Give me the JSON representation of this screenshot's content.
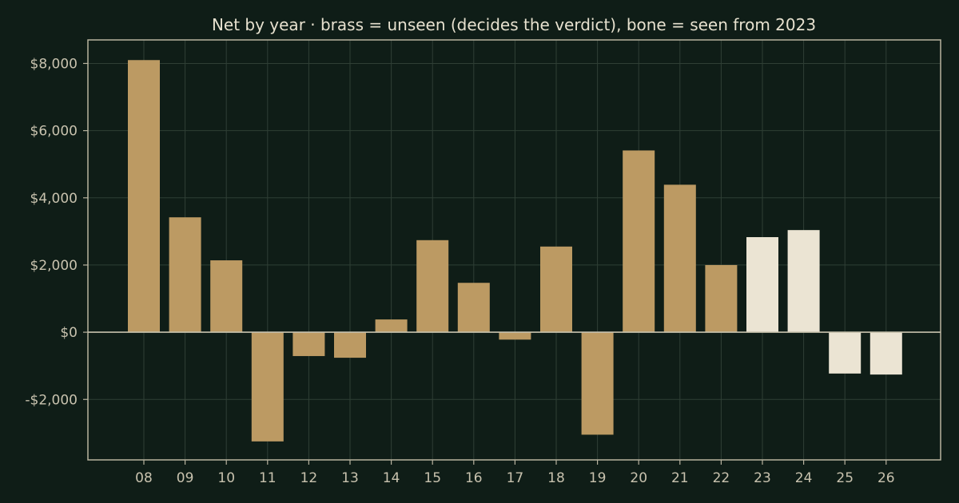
{
  "chart_data": {
    "type": "bar",
    "title": "Net by year  ·  brass = unseen (decides the verdict), bone = seen from 2023",
    "xlabel": "",
    "ylabel": "",
    "categories": [
      "08",
      "09",
      "10",
      "11",
      "12",
      "13",
      "14",
      "15",
      "16",
      "17",
      "18",
      "19",
      "20",
      "21",
      "22",
      "23",
      "24",
      "25",
      "26"
    ],
    "values": [
      8100,
      3420,
      2140,
      -3250,
      -710,
      -760,
      380,
      2740,
      1470,
      -220,
      2550,
      -3050,
      5410,
      4390,
      2000,
      2830,
      3040,
      -1230,
      -1260
    ],
    "groups": [
      "unseen",
      "unseen",
      "unseen",
      "unseen",
      "unseen",
      "unseen",
      "unseen",
      "unseen",
      "unseen",
      "unseen",
      "unseen",
      "unseen",
      "unseen",
      "unseen",
      "unseen",
      "seen",
      "seen",
      "seen",
      "seen"
    ],
    "group_colors": {
      "unseen": "#bc9a63",
      "seen": "#ebe4d3"
    },
    "ylim": [
      -3800,
      8700
    ],
    "yticks": [
      8000,
      6000,
      4000,
      2000,
      0,
      -2000
    ],
    "ytick_labels": [
      "$8,000",
      "$6,000",
      "$4,000",
      "$2,000",
      "$0",
      "-$2,000"
    ],
    "grid": true,
    "colors": {
      "background": "#0f1d17",
      "grid": "#2f3f35",
      "axis": "#b8b39f"
    }
  }
}
